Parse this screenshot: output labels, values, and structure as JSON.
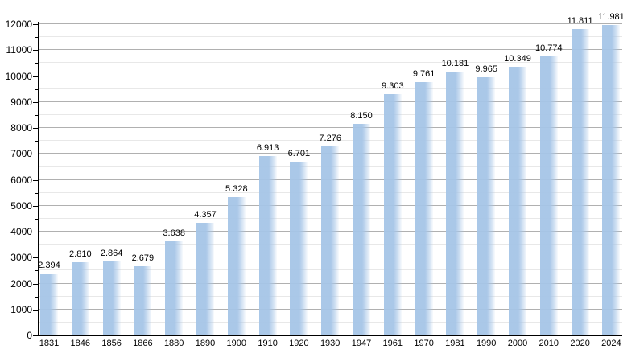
{
  "chart_data": {
    "type": "bar",
    "title": "",
    "xlabel": "",
    "ylabel": "",
    "categories": [
      "1831",
      "1846",
      "1856",
      "1866",
      "1880",
      "1890",
      "1900",
      "1910",
      "1920",
      "1930",
      "1947",
      "1961",
      "1970",
      "1981",
      "1990",
      "2000",
      "2010",
      "2020",
      "2024"
    ],
    "values": [
      2394,
      2810,
      2864,
      2679,
      3638,
      4357,
      5328,
      6913,
      6701,
      7276,
      8150,
      9303,
      9761,
      10181,
      9965,
      10349,
      10774,
      11811,
      11981
    ],
    "value_labels": [
      "2.394",
      "2.810",
      "2.864",
      "2.679",
      "3.638",
      "4.357",
      "5.328",
      "6.913",
      "6.701",
      "7.276",
      "8.150",
      "9.303",
      "9.761",
      "10.181",
      "9.965",
      "10.349",
      "10.774",
      "11.811",
      "11.981"
    ],
    "y_ticks": [
      "0",
      "1000",
      "2000",
      "3000",
      "4000",
      "5000",
      "6000",
      "7000",
      "8000",
      "9000",
      "10000",
      "11000",
      "12000"
    ],
    "ylim": [
      0,
      12000
    ],
    "y_major_step": 1000,
    "y_minor_step": 500,
    "grid": true,
    "legend": null,
    "colors": {
      "bar": "#a6c5e7",
      "grid_major": "#b0b0b0",
      "grid_minor": "#e8e8e8",
      "axis": "#000000",
      "text": "#000000",
      "background": "#ffffff"
    }
  }
}
